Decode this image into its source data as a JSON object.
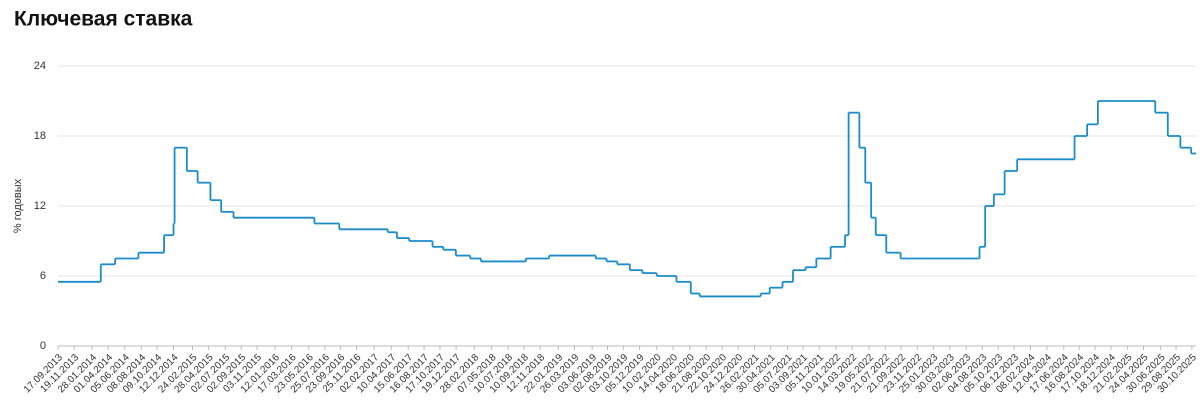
{
  "chart_data": {
    "type": "step",
    "title": "Ключевая ставка",
    "ylabel": "% годовых",
    "series": [
      {
        "name": "Ключевая ставка",
        "color": "#1b8cc9",
        "x": [
          "17.09.2013",
          "03.03.2014",
          "28.04.2014",
          "28.07.2014",
          "05.11.2014",
          "12.12.2014",
          "16.12.2014",
          "02.02.2015",
          "16.03.2015",
          "05.05.2015",
          "16.06.2015",
          "03.08.2015",
          "14.06.2016",
          "19.09.2016",
          "27.03.2017",
          "02.05.2017",
          "19.06.2017",
          "18.09.2017",
          "30.10.2017",
          "18.12.2017",
          "12.02.2018",
          "26.03.2018",
          "17.09.2018",
          "17.12.2018",
          "17.06.2019",
          "29.07.2019",
          "09.09.2019",
          "28.10.2019",
          "16.12.2019",
          "10.02.2020",
          "27.04.2020",
          "22.06.2020",
          "27.07.2020",
          "22.03.2021",
          "26.04.2021",
          "15.06.2021",
          "26.07.2021",
          "13.09.2021",
          "25.10.2021",
          "20.12.2021",
          "14.02.2022",
          "28.02.2022",
          "11.04.2022",
          "04.05.2022",
          "27.05.2022",
          "14.06.2022",
          "25.07.2022",
          "19.09.2022",
          "24.07.2023",
          "15.08.2023",
          "18.09.2023",
          "30.10.2023",
          "18.12.2023",
          "29.07.2024",
          "16.09.2024",
          "28.10.2024",
          "09.06.2025",
          "28.07.2025",
          "15.09.2025",
          "27.10.2025"
        ],
        "values": [
          5.5,
          7,
          7.5,
          8,
          9.5,
          10.5,
          17,
          15,
          14,
          12.5,
          11.5,
          11,
          10.5,
          10,
          9.75,
          9.25,
          9,
          8.5,
          8.25,
          7.75,
          7.5,
          7.25,
          7.5,
          7.75,
          7.5,
          7.25,
          7,
          6.5,
          6.25,
          6,
          5.5,
          4.5,
          4.25,
          4.5,
          5,
          5.5,
          6.5,
          6.75,
          7.5,
          8.5,
          9.5,
          20,
          17,
          14,
          11,
          9.5,
          8,
          7.5,
          8.5,
          12,
          13,
          15,
          16,
          18,
          19,
          21,
          20,
          18,
          17,
          16.5
        ]
      }
    ],
    "xlim": [
      "17.09.2013",
      "15.11.2025"
    ],
    "xticks": [
      "17.09.2013",
      "19.11.2013",
      "28.01.2014",
      "01.04.2014",
      "05.06.2014",
      "08.08.2014",
      "09.10.2014",
      "12.12.2014",
      "24.02.2015",
      "28.04.2015",
      "02.07.2015",
      "02.09.2015",
      "03.11.2015",
      "12.01.2016",
      "17.03.2016",
      "23.05.2016",
      "25.07.2016",
      "23.09.2016",
      "25.11.2016",
      "02.02.2017",
      "10.04.2017",
      "15.06.2017",
      "16.08.2017",
      "17.10.2017",
      "19.12.2017",
      "28.02.2018",
      "07.05.2018",
      "10.07.2018",
      "10.09.2018",
      "12.11.2018",
      "22.01.2019",
      "26.03.2019",
      "03.06.2019",
      "02.08.2019",
      "03.10.2019",
      "05.12.2019",
      "10.02.2020",
      "14.04.2020",
      "18.06.2020",
      "21.08.2020",
      "22.10.2020",
      "24.12.2020",
      "26.02.2021",
      "30.04.2021",
      "05.07.2021",
      "03.09.2021",
      "05.11.2021",
      "10.01.2022",
      "14.03.2022",
      "19.05.2022",
      "21.07.2022",
      "21.09.2022",
      "23.11.2022",
      "25.01.2023",
      "30.03.2023",
      "02.06.2023",
      "04.08.2023",
      "05.10.2023",
      "06.12.2023",
      "08.02.2024",
      "12.04.2024",
      "17.06.2024",
      "16.08.2024",
      "17.10.2024",
      "18.12.2024",
      "21.02.2025",
      "24.04.2025",
      "30.06.2025",
      "29.08.2025",
      "30.10.2025"
    ],
    "ylim": [
      0,
      24
    ],
    "yticks": [
      0,
      6,
      12,
      18,
      24
    ],
    "grid": true
  }
}
